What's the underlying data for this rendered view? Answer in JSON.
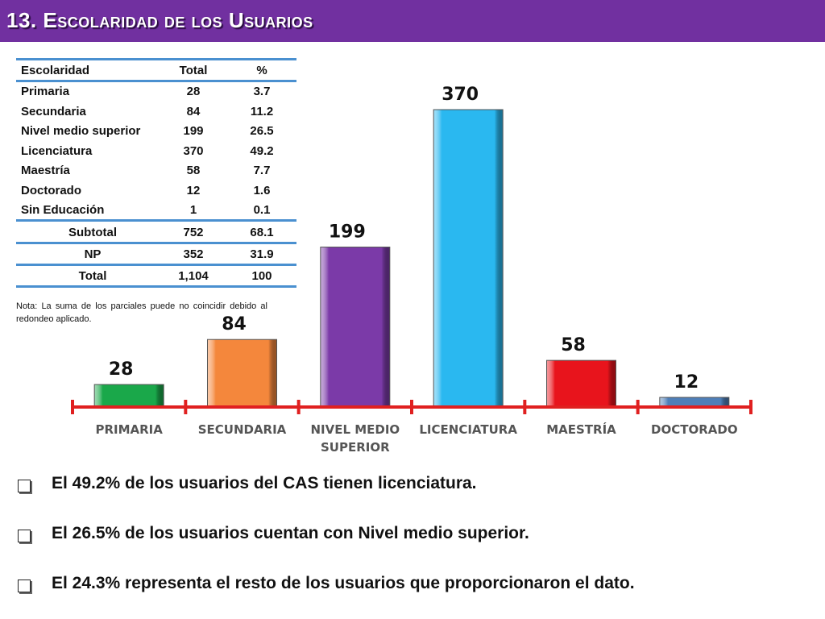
{
  "title": "13. Escolaridad de los Usuarios",
  "table": {
    "headers": [
      "Escolaridad",
      "Total",
      "%"
    ],
    "rows": [
      [
        "Primaria",
        "28",
        "3.7"
      ],
      [
        "Secundaria",
        "84",
        "11.2"
      ],
      [
        "Nivel medio superior",
        "199",
        "26.5"
      ],
      [
        "Licenciatura",
        "370",
        "49.2"
      ],
      [
        "Maestría",
        "58",
        "7.7"
      ],
      [
        "Doctorado",
        "12",
        "1.6"
      ],
      [
        "Sin Educación",
        "1",
        "0.1"
      ]
    ],
    "summary": [
      [
        "Subtotal",
        "752",
        "68.1"
      ],
      [
        "NP",
        "352",
        "31.9"
      ],
      [
        "Total",
        "1,104",
        "100"
      ]
    ]
  },
  "note": "Nota: La suma de los parciales puede no coincidir debido al redondeo aplicado.",
  "chart_data": {
    "type": "bar",
    "categories": [
      "PRIMARIA",
      "SECUNDARIA",
      "NIVEL MEDIO SUPERIOR",
      "LICENCIATURA",
      "MAESTRÍA",
      "DOCTORADO"
    ],
    "values": [
      28,
      84,
      199,
      370,
      58,
      12
    ],
    "colors": [
      "#1aa84a",
      "#f4873c",
      "#7b3aa8",
      "#2ab8f0",
      "#e8141c",
      "#4f7fb8"
    ],
    "axis_color": "#e02020",
    "ylim": [
      0,
      370
    ],
    "grid": false,
    "legend": "none"
  },
  "bullets": [
    "El 49.2% de los usuarios del CAS tienen licenciatura.",
    "El 26.5% de los usuarios cuentan con Nivel medio superior.",
    "El  24.3% representa el resto de los usuarios que proporcionaron el dato."
  ]
}
